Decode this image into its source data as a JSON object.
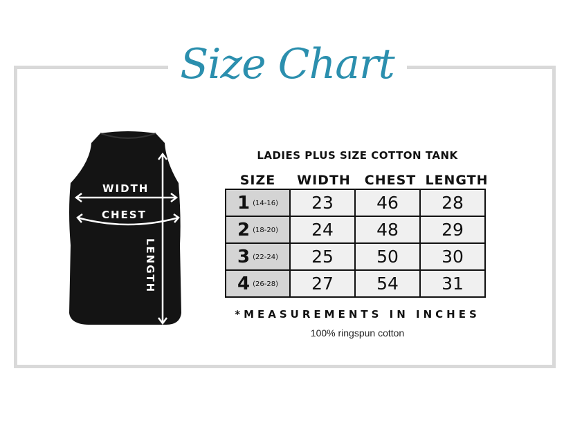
{
  "title": "Size Chart",
  "colors": {
    "title": "#2b8fae",
    "frame": "#d9d9d9",
    "garment": "#111111"
  },
  "diagram": {
    "width_label": "WIDTH",
    "chest_label": "CHEST",
    "length_label": "LENGTH"
  },
  "product": "LADIES PLUS SIZE COTTON TANK",
  "table": {
    "headers": [
      "SIZE",
      "WIDTH",
      "CHEST",
      "LENGTH"
    ],
    "rows": [
      {
        "size": "1",
        "range": "(14-16)",
        "width": "23",
        "chest": "46",
        "length": "28"
      },
      {
        "size": "2",
        "range": "(18-20)",
        "width": "24",
        "chest": "48",
        "length": "29"
      },
      {
        "size": "3",
        "range": "(22-24)",
        "width": "25",
        "chest": "50",
        "length": "30"
      },
      {
        "size": "4",
        "range": "(26-28)",
        "width": "27",
        "chest": "54",
        "length": "31"
      }
    ]
  },
  "note": "*MEASUREMENTS IN INCHES",
  "fabric": "100% ringspun cotton"
}
